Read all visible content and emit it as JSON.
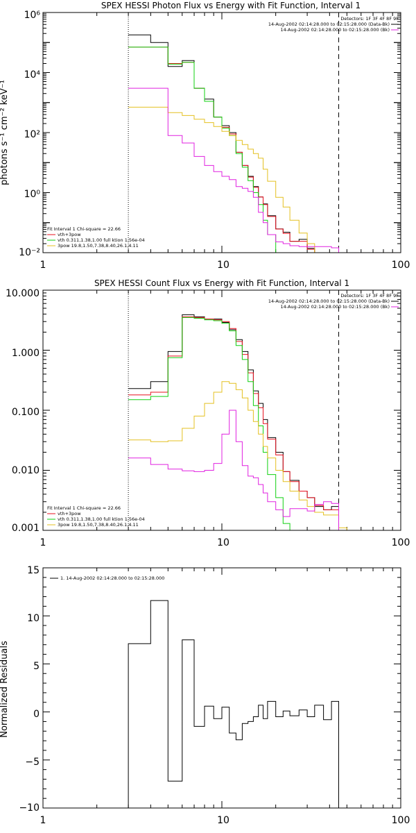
{
  "chart_data": [
    {
      "type": "line",
      "title": "SPEX HESSI Photon Flux vs Energy with Fit Function, Interval 1",
      "xlabel": "",
      "ylabel": "photons s⁻¹ cm⁻² keV⁻¹",
      "xscale": "log",
      "yscale": "log",
      "xlim": [
        1,
        100
      ],
      "ylim": [
        0.01,
        1000000
      ],
      "xticks": [
        1,
        10,
        100
      ],
      "xtick_labels": [
        "1",
        "10",
        "100"
      ],
      "yticks": [
        0.01,
        1,
        100,
        10000,
        1000000
      ],
      "ytick_labels": [
        "10⁻²",
        "10⁰",
        "10²",
        "10⁴",
        "10⁶"
      ],
      "vlines": [
        {
          "x": 3,
          "style": "dotted"
        },
        {
          "x": 45,
          "style": "dashed"
        }
      ],
      "info_lines": [
        "Detectors: 1F 3F 4F 8F 9F",
        "14-Aug-2002 02:14:28.000 to 02:15:28.000 (Data-Bk)",
        "14-Aug-2002 02:14:28.000 to 02:15:28.000 (Bk)"
      ],
      "fit_lines": [
        "Fit Interval 1    Chi-square = 22.66",
        "vth+3pow",
        "vth 0.311,1.38,1.00  full ktion 1.56e-04",
        "3pow 19.8,1.50,7.38,8.40,26.1,4.11"
      ],
      "edges": [
        3,
        4,
        5,
        6,
        7,
        8,
        9,
        10,
        11,
        12,
        13,
        14,
        15,
        16,
        17,
        18,
        20,
        22,
        24,
        27,
        30,
        33,
        37,
        41,
        45
      ],
      "series": [
        {
          "name": "data",
          "color": "#000000",
          "values": [
            180000,
            100000,
            16000,
            25000,
            3000,
            1300,
            330,
            170,
            100,
            22,
            8,
            3.5,
            1.6,
            0.72,
            0.42,
            0.17,
            0.062,
            0.048,
            0.024,
            0.028,
            0.014,
            0.01,
            0.01,
            0.01
          ]
        },
        {
          "name": "vth+3pow",
          "color": "#e8101e",
          "values": [
            70000,
            70000,
            20000,
            22000,
            3000,
            1100,
            330,
            150,
            90,
            22,
            8,
            3.3,
            1.5,
            0.72,
            0.4,
            0.16,
            0.061,
            0.044,
            0.024,
            0.024,
            0.013,
            0.0085,
            0.0085,
            null
          ]
        },
        {
          "name": "vth",
          "color": "#10d010",
          "values": [
            70000,
            70000,
            19000,
            22000,
            3000,
            1100,
            330,
            140,
            80,
            20,
            7,
            2.5,
            1,
            0.4,
            0.12,
            0.04,
            0.0017,
            null,
            null,
            null,
            null,
            null,
            null,
            null
          ]
        },
        {
          "name": "3pow",
          "color": "#e4c020",
          "values": [
            700,
            700,
            460,
            370,
            280,
            215,
            160,
            110,
            80,
            55,
            40,
            28,
            20,
            14,
            6,
            2.4,
            0.7,
            0.33,
            0.12,
            0.045,
            0.02,
            0.01,
            0.0085,
            0.0085
          ]
        },
        {
          "name": "background",
          "color": "#e020e0",
          "values": [
            3000,
            3000,
            80,
            45,
            16,
            8,
            5,
            3.5,
            2.7,
            1.6,
            1.4,
            1.1,
            0.7,
            0.22,
            0.1,
            0.04,
            0.023,
            0.02,
            0.017,
            0.016,
            0.016,
            0.016,
            0.016,
            0.0145
          ]
        }
      ]
    },
    {
      "type": "line",
      "title": "SPEX HESSI Count Flux vs Energy with Fit Function, Interval 1",
      "xlabel": "",
      "ylabel": "",
      "xscale": "log",
      "yscale": "log",
      "xlim": [
        1,
        100
      ],
      "ylim": [
        0.001,
        10
      ],
      "xticks": [
        1,
        10,
        100
      ],
      "xtick_labels": [
        "1",
        "10",
        "100"
      ],
      "yticks": [
        0.001,
        0.01,
        0.1,
        1,
        10
      ],
      "ytick_labels": [
        "0.001",
        "0.010",
        "0.100",
        "1.000",
        "10.000"
      ],
      "vlines": [
        {
          "x": 3,
          "style": "dotted"
        },
        {
          "x": 45,
          "style": "dashed"
        }
      ],
      "info_lines": [
        "Detectors: 1F 3F 4F 8F 9F",
        "14-Aug-2002 02:14:28.000 to 02:15:28.000 (Data-Bk)",
        "14-Aug-2002 02:14:28.000 to 02:15:28.000 (Bk)"
      ],
      "fit_lines": [
        "Fit Interval 1    Chi-square = 22.66",
        "vth+3pow",
        "vth 0.311,1.38,1.00  full ktion 1.56e-04",
        "3pow 19.8,1.50,7.38,8.40,26.1,4.11"
      ],
      "edges": [
        3,
        4,
        5,
        6,
        7,
        8,
        9,
        10,
        11,
        12,
        13,
        14,
        15,
        16,
        17,
        18,
        20,
        22,
        24,
        27,
        30,
        33,
        37,
        41,
        45,
        50,
        55
      ],
      "series": [
        {
          "name": "data",
          "color": "#000000",
          "values": [
            0.23,
            0.3,
            0.95,
            3.9,
            3.6,
            3.3,
            3.3,
            2.9,
            2.2,
            1.5,
            0.95,
            0.47,
            0.21,
            0.13,
            0.07,
            0.035,
            0.02,
            0.0095,
            0.0068,
            0.0045,
            0.0035,
            0.0025,
            0.0022,
            0.0025,
            null,
            null
          ]
        },
        {
          "name": "vth+3pow",
          "color": "#e8101e",
          "values": [
            0.18,
            0.2,
            0.8,
            3.6,
            3.5,
            3.3,
            3.2,
            3.0,
            2.3,
            1.4,
            0.85,
            0.42,
            0.19,
            0.11,
            0.06,
            0.033,
            0.018,
            0.0095,
            0.0065,
            0.0045,
            0.0035,
            0.0026,
            0.0022,
            0.0022,
            null,
            null
          ]
        },
        {
          "name": "vth",
          "color": "#10d010",
          "values": [
            0.15,
            0.17,
            0.75,
            3.5,
            3.4,
            3.2,
            3.1,
            2.8,
            2.1,
            1.2,
            0.7,
            0.3,
            0.12,
            0.055,
            0.02,
            0.0085,
            0.0035,
            0.0013,
            null,
            null,
            null,
            null,
            null,
            null,
            null,
            null
          ]
        },
        {
          "name": "3pow",
          "color": "#e4c020",
          "values": [
            0.032,
            0.03,
            0.031,
            0.05,
            0.08,
            0.13,
            0.2,
            0.3,
            0.28,
            0.22,
            0.16,
            0.1,
            0.065,
            0.04,
            0.025,
            0.016,
            0.01,
            0.0065,
            0.0045,
            0.0032,
            0.0025,
            0.002,
            0.0018,
            0.0018,
            0.0011,
            0.00095
          ]
        },
        {
          "name": "background",
          "color": "#e020e0",
          "values": [
            0.016,
            0.0125,
            0.0105,
            0.0098,
            0.0095,
            0.01,
            0.013,
            0.04,
            0.1,
            0.03,
            0.012,
            0.008,
            0.0075,
            0.0058,
            0.0042,
            0.003,
            0.0022,
            0.0017,
            0.0023,
            0.0023,
            0.0021,
            0.0027,
            0.003,
            0.0028,
            null,
            null
          ]
        }
      ]
    },
    {
      "type": "line",
      "title": "",
      "xlabel": "",
      "ylabel": "Normalized Residuals",
      "xscale": "log",
      "yscale": "linear",
      "xlim": [
        1,
        100
      ],
      "ylim": [
        -10,
        15
      ],
      "xticks": [
        1,
        10,
        100
      ],
      "xtick_labels": [
        "1",
        "10",
        "100"
      ],
      "yticks": [
        -10,
        -5,
        0,
        5,
        10,
        15
      ],
      "ytick_labels": [
        "−10",
        "−5",
        "0",
        "5",
        "10",
        "15"
      ],
      "legend": "1. 14-Aug-2002 02:14:28.000 to 02:15:28.000",
      "edges": [
        3,
        4,
        5,
        6,
        7,
        8,
        9,
        10,
        11,
        12,
        13,
        14,
        15,
        16,
        17,
        18,
        20,
        22,
        24,
        27,
        30,
        33,
        37,
        41,
        45
      ],
      "series": [
        {
          "name": "residuals",
          "color": "#000000",
          "values": [
            7.1,
            11.6,
            -7.2,
            7.5,
            -1.5,
            0.6,
            -0.7,
            0.5,
            -2.2,
            -2.9,
            -1.2,
            -1.0,
            -0.5,
            0.7,
            -0.7,
            1.1,
            -0.5,
            0.1,
            -0.4,
            0.2,
            -0.5,
            0.7,
            -0.8,
            1.1
          ]
        }
      ]
    }
  ]
}
